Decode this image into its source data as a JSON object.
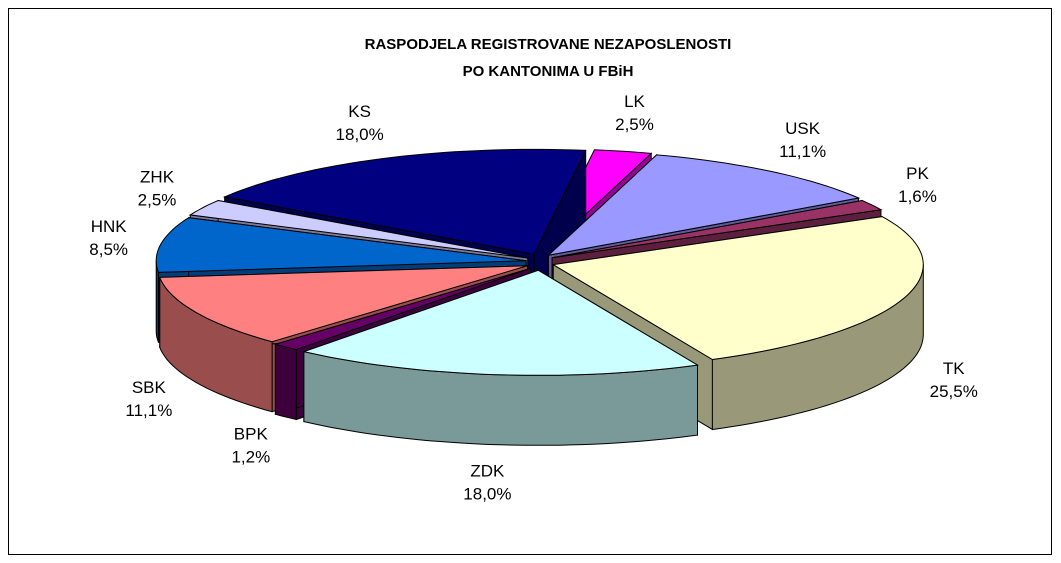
{
  "chart_data": {
    "type": "pie",
    "title": [
      "RASPODJELA REGISTROVANE NEZAPOSLENOSTI",
      "PO KANTONIMA U FBiH"
    ],
    "categories": [
      "LK",
      "USK",
      "PK",
      "TK",
      "ZDK",
      "BPK",
      "SBK",
      "HNK",
      "ZHK",
      "KS"
    ],
    "values": [
      2.5,
      11.1,
      1.6,
      25.5,
      18.0,
      1.2,
      11.1,
      8.5,
      2.5,
      18.0
    ],
    "value_labels": [
      "2,5%",
      "11,1%",
      "1,6%",
      "25,5%",
      "18,0%",
      "1,2%",
      "11,1%",
      "8,5%",
      "2,5%",
      "18,0%"
    ],
    "colors": [
      "#ff00ff",
      "#9999ff",
      "#993366",
      "#ffffcc",
      "#ccffff",
      "#660066",
      "#ff8080",
      "#0066cc",
      "#ccccff",
      "#000080"
    ]
  }
}
